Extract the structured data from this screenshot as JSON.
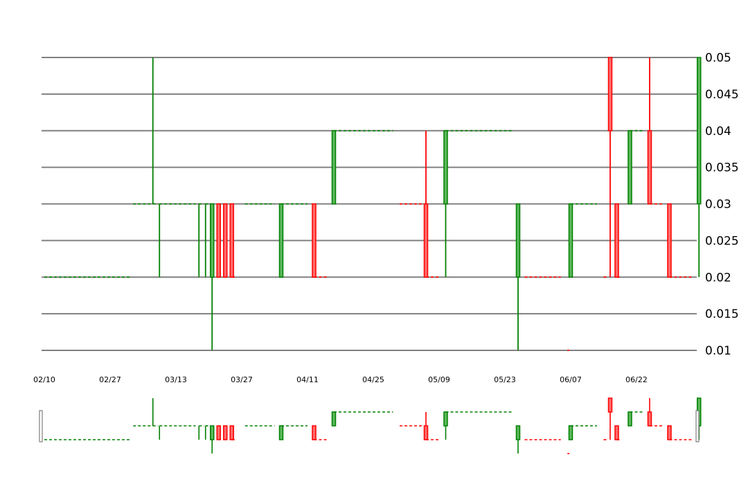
{
  "chart_data": {
    "type": "candlestick",
    "ylim": [
      0.01,
      0.05
    ],
    "yticks": [
      "0.01",
      "0.015",
      "0.02",
      "0.025",
      "0.03",
      "0.035",
      "0.04",
      "0.045",
      "0.05"
    ],
    "xticks": [
      "02/10",
      "02/27",
      "03/13",
      "03/27",
      "04/11",
      "04/25",
      "05/09",
      "05/23",
      "06/07",
      "06/22"
    ],
    "grid": true,
    "colors": {
      "up": "#008000",
      "down": "#ff0000",
      "grid": "#808080"
    },
    "candles": [
      {
        "x": 0.0,
        "o": 0.02,
        "h": 0.02,
        "l": 0.02,
        "c": 0.02,
        "dir": "up",
        "flat": 1.3
      },
      {
        "x": 1.35,
        "o": 0.03,
        "h": 0.03,
        "l": 0.03,
        "c": 0.03,
        "dir": "up",
        "flat": 0.3
      },
      {
        "x": 1.65,
        "o": 0.03,
        "h": 0.05,
        "l": 0.03,
        "c": 0.03,
        "dir": "up",
        "flat": 0.08
      },
      {
        "x": 1.75,
        "o": 0.03,
        "h": 0.03,
        "l": 0.02,
        "c": 0.03,
        "dir": "up",
        "flat": 0.55
      },
      {
        "x": 2.35,
        "o": 0.03,
        "h": 0.03,
        "l": 0.02,
        "c": 0.03,
        "dir": "up",
        "flat": 0.08
      },
      {
        "x": 2.45,
        "o": 0.03,
        "h": 0.03,
        "l": 0.02,
        "c": 0.03,
        "dir": "up",
        "flat": 0.05
      },
      {
        "x": 2.55,
        "o": 0.02,
        "h": 0.03,
        "l": 0.01,
        "c": 0.03,
        "dir": "up",
        "flat": 0
      },
      {
        "x": 2.65,
        "o": 0.03,
        "h": 0.03,
        "l": 0.02,
        "c": 0.02,
        "dir": "down",
        "flat": 0
      },
      {
        "x": 2.75,
        "o": 0.03,
        "h": 0.03,
        "l": 0.02,
        "c": 0.02,
        "dir": "down",
        "flat": 0
      },
      {
        "x": 2.85,
        "o": 0.03,
        "h": 0.03,
        "l": 0.02,
        "c": 0.02,
        "dir": "down",
        "flat": 0.05
      },
      {
        "x": 3.05,
        "o": 0.03,
        "h": 0.03,
        "l": 0.03,
        "c": 0.03,
        "dir": "up",
        "flat": 0.45
      },
      {
        "x": 3.6,
        "o": 0.02,
        "h": 0.03,
        "l": 0.02,
        "c": 0.03,
        "dir": "up",
        "flat": 0.4
      },
      {
        "x": 4.1,
        "o": 0.03,
        "h": 0.03,
        "l": 0.02,
        "c": 0.02,
        "dir": "down",
        "flat": 0.2
      },
      {
        "x": 4.4,
        "o": 0.03,
        "h": 0.04,
        "l": 0.03,
        "c": 0.04,
        "dir": "up",
        "flat": 0.9
      },
      {
        "x": 5.4,
        "o": 0.03,
        "h": 0.03,
        "l": 0.03,
        "c": 0.03,
        "dir": "down",
        "flat": 0.35
      },
      {
        "x": 5.8,
        "o": 0.03,
        "h": 0.04,
        "l": 0.02,
        "c": 0.02,
        "dir": "down",
        "flat": 0.2
      },
      {
        "x": 6.1,
        "o": 0.03,
        "h": 0.04,
        "l": 0.02,
        "c": 0.04,
        "dir": "up",
        "flat": 1.0
      },
      {
        "x": 7.2,
        "o": 0.02,
        "h": 0.03,
        "l": 0.01,
        "c": 0.03,
        "dir": "up",
        "flat": 0
      },
      {
        "x": 7.3,
        "o": 0.02,
        "h": 0.02,
        "l": 0.02,
        "c": 0.02,
        "dir": "down",
        "flat": 0.55
      },
      {
        "x": 7.95,
        "o": 0.01,
        "h": 0.01,
        "l": 0.01,
        "c": 0.01,
        "dir": "down",
        "flat": 0.03
      },
      {
        "x": 8.0,
        "o": 0.02,
        "h": 0.03,
        "l": 0.02,
        "c": 0.03,
        "dir": "up",
        "flat": 0.4
      },
      {
        "x": 8.5,
        "o": 0.02,
        "h": 0.02,
        "l": 0.02,
        "c": 0.02,
        "dir": "down",
        "flat": 0.05
      },
      {
        "x": 8.6,
        "o": 0.05,
        "h": 0.05,
        "l": 0.02,
        "c": 0.04,
        "dir": "down",
        "flat": 0
      },
      {
        "x": 8.7,
        "o": 0.03,
        "h": 0.03,
        "l": 0.02,
        "c": 0.02,
        "dir": "down",
        "flat": 0.05
      },
      {
        "x": 8.9,
        "o": 0.03,
        "h": 0.04,
        "l": 0.03,
        "c": 0.04,
        "dir": "up",
        "flat": 0.2
      },
      {
        "x": 9.2,
        "o": 0.04,
        "h": 0.05,
        "l": 0.03,
        "c": 0.03,
        "dir": "down",
        "flat": 0.2
      },
      {
        "x": 9.5,
        "o": 0.03,
        "h": 0.03,
        "l": 0.02,
        "c": 0.02,
        "dir": "down",
        "flat": 0.35
      },
      {
        "x": 9.95,
        "o": 0.03,
        "h": 0.05,
        "l": 0.02,
        "c": 0.05,
        "dir": "up",
        "flat": 0
      }
    ]
  }
}
